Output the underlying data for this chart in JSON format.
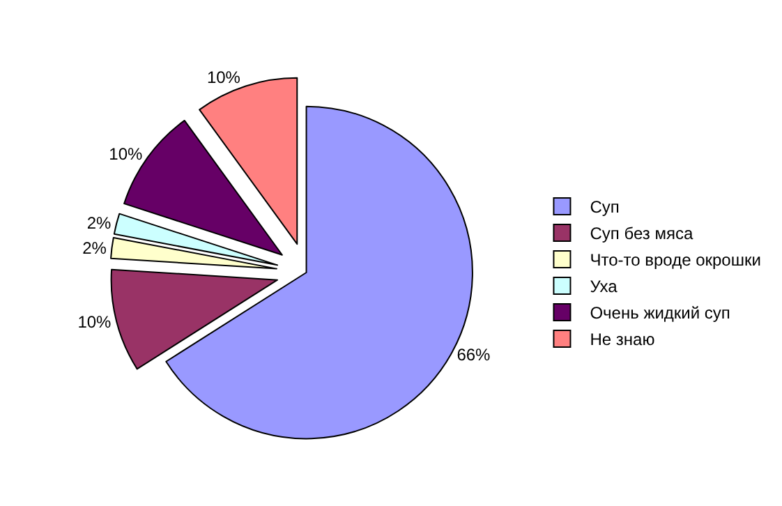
{
  "chart_data": {
    "type": "pie",
    "categories": [
      "Суп",
      "Суп без мяса",
      "Что-то вроде окрошки",
      "Уха",
      "Очень жидкий суп",
      "Не знаю"
    ],
    "values": [
      66,
      10,
      2,
      2,
      10,
      10
    ],
    "value_labels": [
      "66%",
      "10%",
      "2%",
      "2%",
      "10%",
      "10%"
    ],
    "colors": [
      "#9999ff",
      "#993366",
      "#ffffcc",
      "#ccffff",
      "#660066",
      "#ff8080"
    ],
    "legend": "right"
  }
}
